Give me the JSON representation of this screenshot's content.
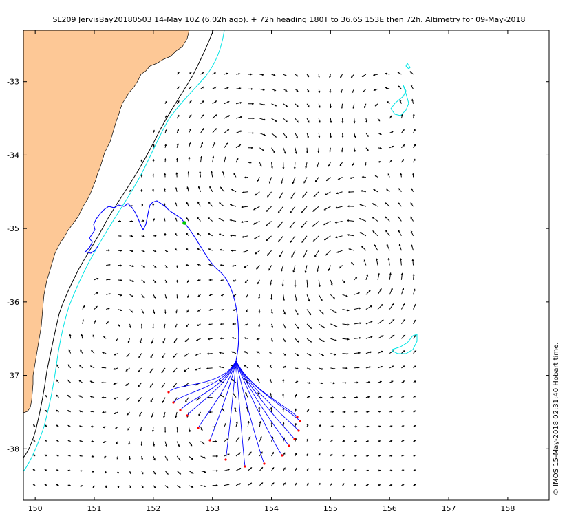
{
  "title": "SL209 JervisBay20180503 14-May 10Z (6.02h ago). + 72h heading 180T to 36.6S 153E then 72h. Altimetry for 09-May-2018",
  "credit": "© IMOS 15-May-2018 02:31:40 Hobart time.",
  "chart_data": {
    "type": "map",
    "x_axis": {
      "ticks": [
        150,
        151,
        152,
        153,
        154,
        155,
        156,
        157,
        158
      ],
      "range": [
        149.8,
        158.7
      ]
    },
    "y_axis": {
      "ticks": [
        -33,
        -34,
        -35,
        -36,
        -37,
        -38
      ],
      "range": [
        -38.7,
        -32.3
      ]
    },
    "grid": false,
    "colors": {
      "land": "#fdc896",
      "coastline": "#000000",
      "isobath_black": "#000000",
      "isobath_cyan": "#00e5e5",
      "glider_track": "#0000ff",
      "current_vector": "#000000",
      "forecast_endpoint": "#ff0000",
      "glider_position": "#00cc00"
    },
    "vector_field": {
      "lon_start": 150.0,
      "lon_end": 156.4,
      "lat_start": -38.5,
      "lat_end": -32.8,
      "step": 0.2
    },
    "forecast_origin": {
      "lon": 153.4,
      "lat": -36.8
    },
    "glider_position": {
      "lon": 152.5,
      "lat": -34.93
    }
  }
}
